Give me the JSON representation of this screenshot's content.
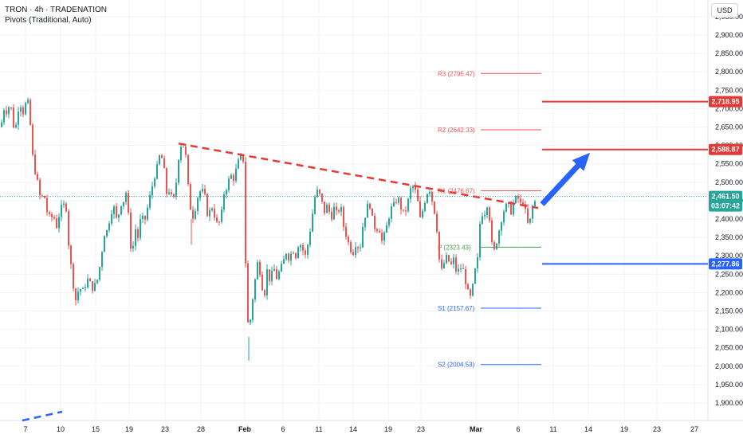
{
  "legend": {
    "symbol_line": "TRON · 4h · TRADENATION",
    "indicator_line": "Pivots (Traditional, Auto)"
  },
  "currency_button": "USD",
  "colors": {
    "up": "#26a69a",
    "down": "#ef5350",
    "resistance": "#e53935",
    "support": "#2962ff",
    "pivot_p": "#43a047",
    "pivot_r": "#ef5350",
    "pivot_s": "#2962ff",
    "arrow": "#2962ff",
    "last_price_tag": "#26a69a",
    "grid": "#f0f3fa"
  },
  "chart_data": {
    "type": "candlestick",
    "title": "",
    "ylim": [
      1870,
      3020
    ],
    "y_ticks": [
      "2,950.00",
      "2,900.00",
      "2,850.00",
      "2,800.00",
      "2,750.00",
      "2,700.00",
      "2,650.00",
      "2,600.00",
      "2,550.00",
      "2,500.00",
      "2,450.00",
      "2,400.00",
      "2,350.00",
      "2,300.00",
      "2,250.00",
      "2,200.00",
      "2,150.00",
      "2,100.00",
      "2,050.00",
      "2,000.00",
      "1,950.00",
      "1,900.00"
    ],
    "x_ticks": [
      "7",
      "10",
      "15",
      "19",
      "23",
      "28",
      "Feb",
      "6",
      "11",
      "14",
      "19",
      "23",
      "Mar",
      "6",
      "11",
      "14",
      "19",
      "23",
      "27"
    ],
    "close_path": [
      [
        0,
        2650
      ],
      [
        4,
        2700
      ],
      [
        8,
        2690
      ],
      [
        12,
        2720
      ],
      [
        15,
        2660
      ],
      [
        18,
        2640
      ],
      [
        22,
        2700
      ],
      [
        25,
        2710
      ],
      [
        28,
        2690
      ],
      [
        32,
        2720
      ],
      [
        36,
        2710
      ],
      [
        38,
        2600
      ],
      [
        42,
        2540
      ],
      [
        46,
        2500
      ],
      [
        50,
        2450
      ],
      [
        54,
        2470
      ],
      [
        58,
        2420
      ],
      [
        62,
        2400
      ],
      [
        66,
        2410
      ],
      [
        70,
        2380
      ],
      [
        74,
        2420
      ],
      [
        78,
        2440
      ],
      [
        82,
        2430
      ],
      [
        86,
        2300
      ],
      [
        89,
        2260
      ],
      [
        92,
        2200
      ],
      [
        95,
        2170
      ],
      [
        98,
        2220
      ],
      [
        102,
        2200
      ],
      [
        106,
        2220
      ],
      [
        110,
        2240
      ],
      [
        114,
        2210
      ],
      [
        118,
        2220
      ],
      [
        122,
        2240
      ],
      [
        126,
        2300
      ],
      [
        130,
        2360
      ],
      [
        134,
        2370
      ],
      [
        138,
        2420
      ],
      [
        142,
        2430
      ],
      [
        146,
        2390
      ],
      [
        150,
        2440
      ],
      [
        154,
        2450
      ],
      [
        158,
        2480
      ],
      [
        162,
        2340
      ],
      [
        165,
        2300
      ],
      [
        168,
        2380
      ],
      [
        172,
        2350
      ],
      [
        176,
        2410
      ],
      [
        180,
        2390
      ],
      [
        184,
        2430
      ],
      [
        188,
        2470
      ],
      [
        192,
        2510
      ],
      [
        196,
        2540
      ],
      [
        200,
        2580
      ],
      [
        204,
        2550
      ],
      [
        208,
        2470
      ],
      [
        212,
        2480
      ],
      [
        216,
        2440
      ],
      [
        220,
        2500
      ],
      [
        224,
        2590
      ],
      [
        228,
        2610
      ],
      [
        232,
        2570
      ],
      [
        236,
        2460
      ],
      [
        240,
        2400
      ],
      [
        244,
        2430
      ],
      [
        248,
        2470
      ],
      [
        252,
        2480
      ],
      [
        256,
        2460
      ],
      [
        260,
        2400
      ],
      [
        264,
        2440
      ],
      [
        268,
        2410
      ],
      [
        272,
        2380
      ],
      [
        276,
        2400
      ],
      [
        280,
        2470
      ],
      [
        284,
        2490
      ],
      [
        288,
        2520
      ],
      [
        292,
        2510
      ],
      [
        296,
        2540
      ],
      [
        300,
        2570
      ],
      [
        304,
        2560
      ],
      [
        308,
        2190
      ],
      [
        311,
        2080
      ],
      [
        314,
        2150
      ],
      [
        318,
        2220
      ],
      [
        322,
        2280
      ],
      [
        326,
        2250
      ],
      [
        330,
        2180
      ],
      [
        334,
        2260
      ],
      [
        338,
        2230
      ],
      [
        342,
        2270
      ],
      [
        346,
        2240
      ],
      [
        350,
        2260
      ],
      [
        354,
        2280
      ],
      [
        358,
        2310
      ],
      [
        362,
        2290
      ],
      [
        366,
        2320
      ],
      [
        370,
        2300
      ],
      [
        374,
        2340
      ],
      [
        378,
        2320
      ],
      [
        382,
        2300
      ],
      [
        386,
        2340
      ],
      [
        390,
        2400
      ],
      [
        394,
        2460
      ],
      [
        398,
        2480
      ],
      [
        402,
        2450
      ],
      [
        406,
        2420
      ],
      [
        410,
        2440
      ],
      [
        414,
        2400
      ],
      [
        418,
        2430
      ],
      [
        422,
        2410
      ],
      [
        426,
        2440
      ],
      [
        430,
        2380
      ],
      [
        434,
        2350
      ],
      [
        438,
        2320
      ],
      [
        442,
        2310
      ],
      [
        446,
        2340
      ],
      [
        450,
        2310
      ],
      [
        454,
        2380
      ],
      [
        458,
        2420
      ],
      [
        462,
        2450
      ],
      [
        466,
        2400
      ],
      [
        470,
        2370
      ],
      [
        474,
        2380
      ],
      [
        478,
        2340
      ],
      [
        482,
        2360
      ],
      [
        486,
        2400
      ],
      [
        490,
        2430
      ],
      [
        494,
        2440
      ],
      [
        498,
        2460
      ],
      [
        502,
        2430
      ],
      [
        506,
        2410
      ],
      [
        510,
        2440
      ],
      [
        514,
        2480
      ],
      [
        518,
        2490
      ],
      [
        522,
        2460
      ],
      [
        526,
        2400
      ],
      [
        530,
        2430
      ],
      [
        534,
        2470
      ],
      [
        538,
        2480
      ],
      [
        542,
        2440
      ],
      [
        546,
        2400
      ],
      [
        550,
        2290
      ],
      [
        553,
        2260
      ],
      [
        556,
        2280
      ],
      [
        560,
        2300
      ],
      [
        564,
        2270
      ],
      [
        568,
        2290
      ],
      [
        572,
        2250
      ],
      [
        576,
        2270
      ],
      [
        580,
        2260
      ],
      [
        584,
        2220
      ],
      [
        588,
        2180
      ],
      [
        591,
        2200
      ],
      [
        594,
        2250
      ],
      [
        598,
        2290
      ],
      [
        602,
        2420
      ],
      [
        606,
        2410
      ],
      [
        610,
        2440
      ],
      [
        614,
        2390
      ],
      [
        617,
        2300
      ],
      [
        620,
        2320
      ],
      [
        624,
        2360
      ],
      [
        628,
        2400
      ],
      [
        632,
        2430
      ],
      [
        636,
        2440
      ],
      [
        640,
        2420
      ],
      [
        644,
        2450
      ],
      [
        648,
        2460
      ],
      [
        652,
        2440
      ],
      [
        656,
        2450
      ],
      [
        660,
        2390
      ],
      [
        663,
        2380
      ],
      [
        666,
        2430
      ],
      [
        669,
        2440
      ],
      [
        672,
        2460
      ]
    ],
    "current_price": 2461.5,
    "countdown": "03:07:42",
    "price_tags": [
      {
        "label": "2,718.95",
        "value": 2718.95,
        "color": "#e53935"
      },
      {
        "label": "2,588.87",
        "value": 2588.87,
        "color": "#e53935"
      },
      {
        "label": "2,277.86",
        "value": 2277.86,
        "color": "#2962ff"
      }
    ],
    "last_price_label": "2,461.50",
    "pivots": [
      {
        "label": "R3 (2795.47)",
        "value": 2795.47,
        "kind": "r"
      },
      {
        "label": "R2 (2642.33)",
        "value": 2642.33,
        "kind": "r"
      },
      {
        "label": "R1 (2476.67)",
        "value": 2476.67,
        "kind": "r"
      },
      {
        "label": "P (2323.43)",
        "value": 2323.43,
        "kind": "p"
      },
      {
        "label": "S1 (2157.67)",
        "value": 2157.67,
        "kind": "s"
      },
      {
        "label": "S2 (2004.53)",
        "value": 2004.53,
        "kind": "s"
      }
    ],
    "horizontal_levels": [
      {
        "value": 2718.95,
        "color": "#e53935"
      },
      {
        "value": 2588.87,
        "color": "#e53935"
      },
      {
        "value": 2277.86,
        "color": "#2962ff"
      }
    ],
    "trendline": {
      "from": [
        224,
        2605
      ],
      "to": [
        675,
        2430
      ]
    },
    "arrow": {
      "from": [
        680,
        2440
      ],
      "to": [
        740,
        2580
      ]
    }
  }
}
